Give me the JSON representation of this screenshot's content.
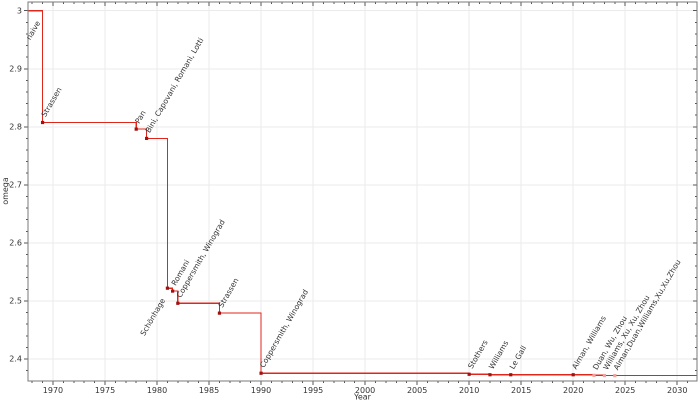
{
  "figure": {
    "background": "#ffffff"
  },
  "axes": {
    "x": {
      "label": "Year",
      "min": 1967.6,
      "max": 2031.9,
      "major_tick_values": [
        1970,
        1975,
        1980,
        1985,
        1990,
        1995,
        2000,
        2005,
        2010,
        2015,
        2020,
        2025,
        2030
      ],
      "major_tick_labels": [
        "1970",
        "1975",
        "1980",
        "1985",
        "1990",
        "1995",
        "2000",
        "2005",
        "2010",
        "2015",
        "2020",
        "2025",
        "2030"
      ],
      "minor_tick_step": 1
    },
    "y": {
      "label": "omega",
      "min": 2.3621,
      "max": 3.015,
      "major_tick_values": [
        2.4,
        2.5,
        2.6,
        2.7,
        2.8,
        2.9,
        3
      ],
      "major_tick_labels": [
        "2.4",
        "2.5",
        "2.6",
        "2.7",
        "2.8",
        "2.9",
        "3"
      ],
      "minor_tick_step": 0.02
    },
    "grid": true,
    "frame": true
  },
  "style": {
    "grid_color": "#ebebeb",
    "spine_color": "#7a7a7a",
    "tick_color": "#555555",
    "tick_label_color": "#333333"
  },
  "chart_data": {
    "type": "line",
    "subtype": "step-post",
    "title": "",
    "xlabel": "Year",
    "ylabel": "omega",
    "xlim": [
      1967.6,
      2031.9
    ],
    "ylim": [
      2.3621,
      3.015
    ],
    "grid": true,
    "legend": false,
    "line_color": "#e0251d",
    "marker_color": "#a21010",
    "faded_marker_color": "#f1a29e",
    "label_color": "#3b3b3b",
    "faded_label_color": "#b5b5b5",
    "initial_omega": 3,
    "points": [
      {
        "year": 1969,
        "omega": 3,
        "label": "naive",
        "marker": false,
        "label_anchor": "end"
      },
      {
        "year": 1969,
        "omega": 2.8074,
        "label": "Strassen"
      },
      {
        "year": 1978,
        "omega": 2.796,
        "label": "Pan"
      },
      {
        "year": 1979,
        "omega": 2.78,
        "label": "Bini, Capovani, Romani, Lotti"
      },
      {
        "year": 1981,
        "omega": 2.522,
        "label": "Schönhage",
        "label_anchor": "end"
      },
      {
        "year": 1981.5,
        "omega": 2.517,
        "label": "Romani"
      },
      {
        "year": 1982,
        "omega": 2.496,
        "label": "Coppersmith, Winograd"
      },
      {
        "year": 1986,
        "omega": 2.479,
        "label": "Strassen"
      },
      {
        "year": 1990,
        "omega": 2.3755,
        "label": "Coppersmith, Winograd"
      },
      {
        "year": 2010,
        "omega": 2.3737,
        "label": "Stothers"
      },
      {
        "year": 2012,
        "omega": 2.372873,
        "label": "Williams"
      },
      {
        "year": 2014,
        "omega": 2.372864,
        "label": "Le Gall"
      },
      {
        "year": 2020,
        "omega": 2.3728596,
        "label": "Alman, Williams"
      },
      {
        "year": 2022,
        "omega": 2.371866,
        "label": "Duan, Wu, Zhou",
        "faded": true
      },
      {
        "year": 2023,
        "omega": 2.371552,
        "label": "Williams, Xu, Xu, Zhou",
        "faded": true
      },
      {
        "year": 2024,
        "omega": 2.371339,
        "label": "Alman,Duan,Williams,Xu,Xu,Zhou",
        "faded": true
      }
    ]
  }
}
